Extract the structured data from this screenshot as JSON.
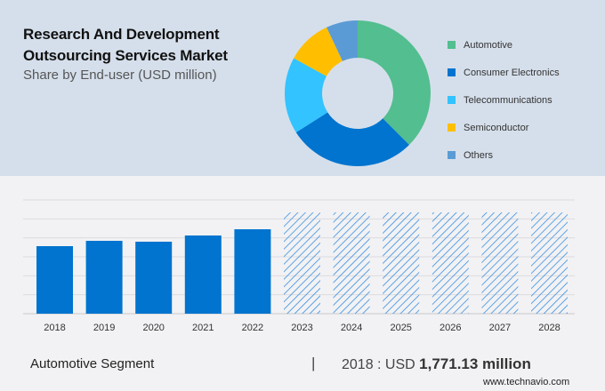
{
  "header": {
    "title": "Research And Development Outsourcing Services Market",
    "subtitle": "Share by End-user (USD million)"
  },
  "colors": {
    "automotive": "#53be8f",
    "consumer_electronics": "#0074cf",
    "telecommunications": "#33c3ff",
    "semiconductor": "#ffbf00",
    "others": "#5b9bd5",
    "bar": "#0074cf",
    "forecast_hatch": "#3a8fe0",
    "top_bg": "#d5dfeb",
    "bottom_bg": "#f2f2f4"
  },
  "chart_data": [
    {
      "type": "pie",
      "donut": true,
      "title": "Share by End-user (USD million)",
      "legend_position": "right",
      "categories": [
        "Automotive",
        "Consumer Electronics",
        "Telecommunications",
        "Semiconductor",
        "Others"
      ],
      "values": [
        37.5,
        28.5,
        17,
        10,
        7
      ]
    },
    {
      "type": "bar",
      "title": "",
      "xlabel": "",
      "ylabel": "",
      "grid": true,
      "categories": [
        "2018",
        "2019",
        "2020",
        "2021",
        "2022",
        "2023",
        "2024",
        "2025",
        "2026",
        "2027",
        "2028"
      ],
      "values": [
        1771.13,
        1911,
        1888,
        2051,
        2214,
        null,
        null,
        null,
        null,
        null,
        null
      ],
      "forecast": [
        false,
        false,
        false,
        false,
        false,
        true,
        true,
        true,
        true,
        true,
        true
      ],
      "ylim": [
        0,
        2983
      ]
    }
  ],
  "footer": {
    "segment": "Automotive Segment",
    "separator": "|",
    "year_label": "2018 : USD ",
    "value": "1,771.13 million",
    "site": "www.technavio.com"
  }
}
